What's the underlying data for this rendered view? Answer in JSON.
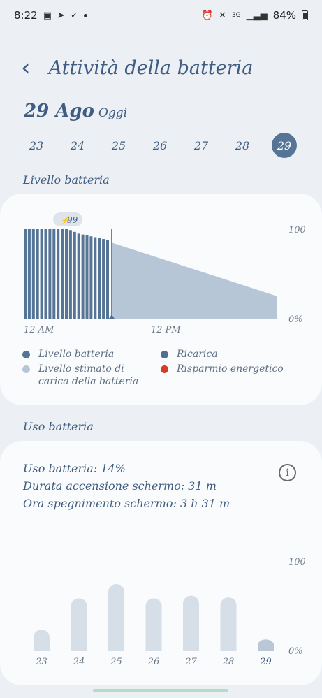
{
  "status_bar": {
    "time": "8:22",
    "network": "3G",
    "battery_percent": "84%",
    "left_icons": [
      "gallery-icon",
      "telegram-icon",
      "check-icon",
      "dot-icon"
    ],
    "right_icons": [
      "alarm-icon",
      "mute-icon",
      "signal-icon",
      "battery-icon"
    ]
  },
  "header": {
    "back_symbol": "‹",
    "title": "Attività della batteria"
  },
  "date": {
    "main": "29 Ago",
    "sub": "Oggi"
  },
  "days": [
    {
      "label": "23",
      "selected": false
    },
    {
      "label": "24",
      "selected": false
    },
    {
      "label": "25",
      "selected": false
    },
    {
      "label": "26",
      "selected": false
    },
    {
      "label": "27",
      "selected": false
    },
    {
      "label": "28",
      "selected": false
    },
    {
      "label": "29",
      "selected": true
    }
  ],
  "level_section": {
    "title": "Livello batteria",
    "legend": [
      {
        "label": "Livello batteria",
        "color": "#557496"
      },
      {
        "label": "Ricarica",
        "color": "#4f6f95"
      },
      {
        "label": "Livello stimato di carica della batteria",
        "color": "#b7c6d6"
      },
      {
        "label": "Risparmio energetico",
        "color": "#d43d21"
      }
    ]
  },
  "usage_section": {
    "title": "Uso batteria",
    "stats": [
      "Uso batteria: 14%",
      "Durata accensione schermo: 31 m",
      "Ora spegnimento schermo: 3 h 31 m"
    ],
    "info_symbol": "i"
  },
  "chart_data": [
    {
      "type": "bar",
      "title": "Livello batteria",
      "ylim": [
        0,
        100
      ],
      "y_tick_labels": [
        "100",
        "0%"
      ],
      "x_tick_labels": [
        "12 AM",
        "12 PM"
      ],
      "charge_badge": "99",
      "charge_symbol": "⚡",
      "series": [
        {
          "name": "Livello batteria",
          "values": [
            100,
            100,
            100,
            100,
            100,
            100,
            100,
            100,
            100,
            100,
            100,
            99,
            97,
            95,
            94,
            93,
            92,
            91,
            90,
            89,
            88
          ]
        }
      ],
      "estimate": {
        "from": 85,
        "to": 25
      },
      "colors": {
        "bars": "#557496",
        "estimate": "#b7c6d6",
        "marker": "#4f6f95"
      }
    },
    {
      "type": "bar",
      "title": "Uso batteria",
      "ylim": [
        0,
        100
      ],
      "y_tick_labels": [
        "100",
        "0%"
      ],
      "categories": [
        "23",
        "24",
        "25",
        "26",
        "27",
        "28",
        "29"
      ],
      "values": [
        24,
        59,
        75,
        59,
        62,
        60,
        13
      ],
      "colors": {
        "bars": "#d6dee8",
        "highlight": "#b9c7d7"
      }
    }
  ]
}
